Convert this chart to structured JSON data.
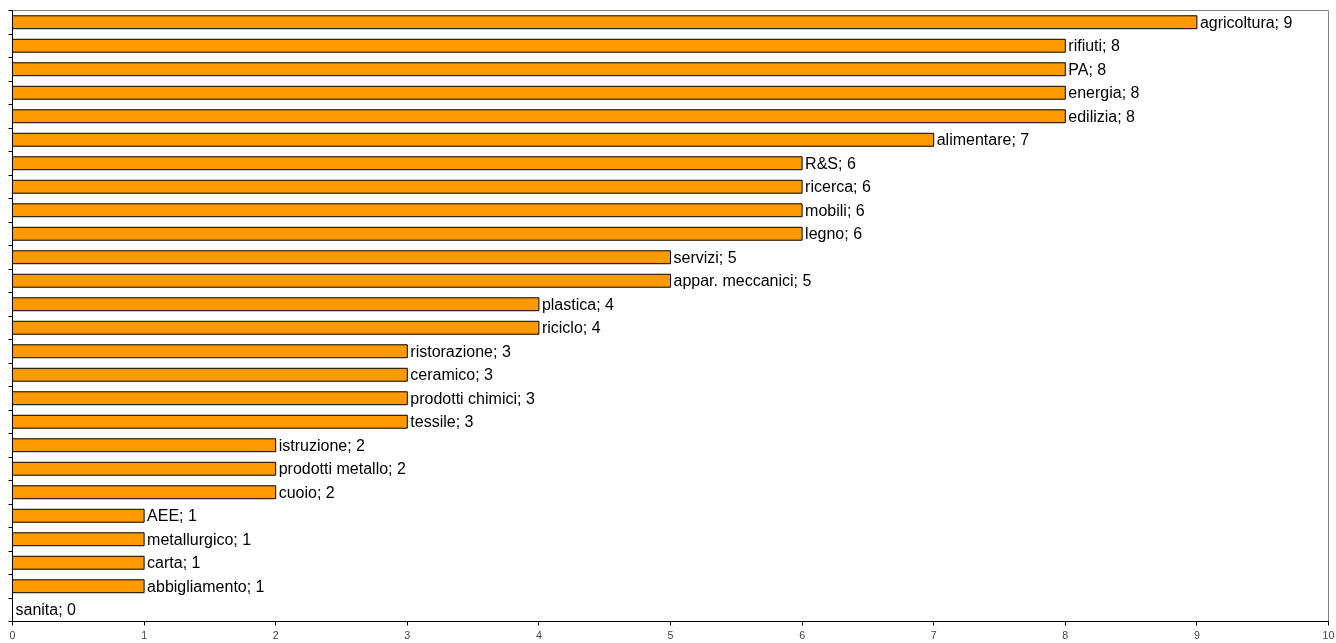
{
  "chart_data": {
    "type": "bar",
    "orientation": "horizontal",
    "categories": [
      "agricoltura; 9",
      "rifiuti; 8",
      "PA; 8",
      "energia; 8",
      "edilizia; 8",
      "alimentare; 7",
      "R&S; 6",
      "ricerca; 6",
      "mobili; 6",
      "legno; 6",
      "servizi; 5",
      "appar. meccanici; 5",
      "plastica; 4",
      "riciclo; 4",
      "ristorazione; 3",
      "ceramico; 3",
      "prodotti chimici; 3",
      "tessile; 3",
      "istruzione; 2",
      "prodotti metallo; 2",
      "cuoio; 2",
      "AEE; 1",
      "metallurgico; 1",
      "carta; 1",
      "abbigliamento; 1",
      "sanita; 0"
    ],
    "values": [
      9,
      8,
      8,
      8,
      8,
      7,
      6,
      6,
      6,
      6,
      5,
      5,
      4,
      4,
      3,
      3,
      3,
      3,
      2,
      2,
      2,
      1,
      1,
      1,
      1,
      0
    ],
    "color": "#ff9900",
    "xlim": [
      0,
      10
    ],
    "xticks": [
      0,
      1,
      2,
      3,
      4,
      5,
      6,
      7,
      8,
      9,
      10
    ],
    "tick_labels": "x",
    "grid": false
  }
}
